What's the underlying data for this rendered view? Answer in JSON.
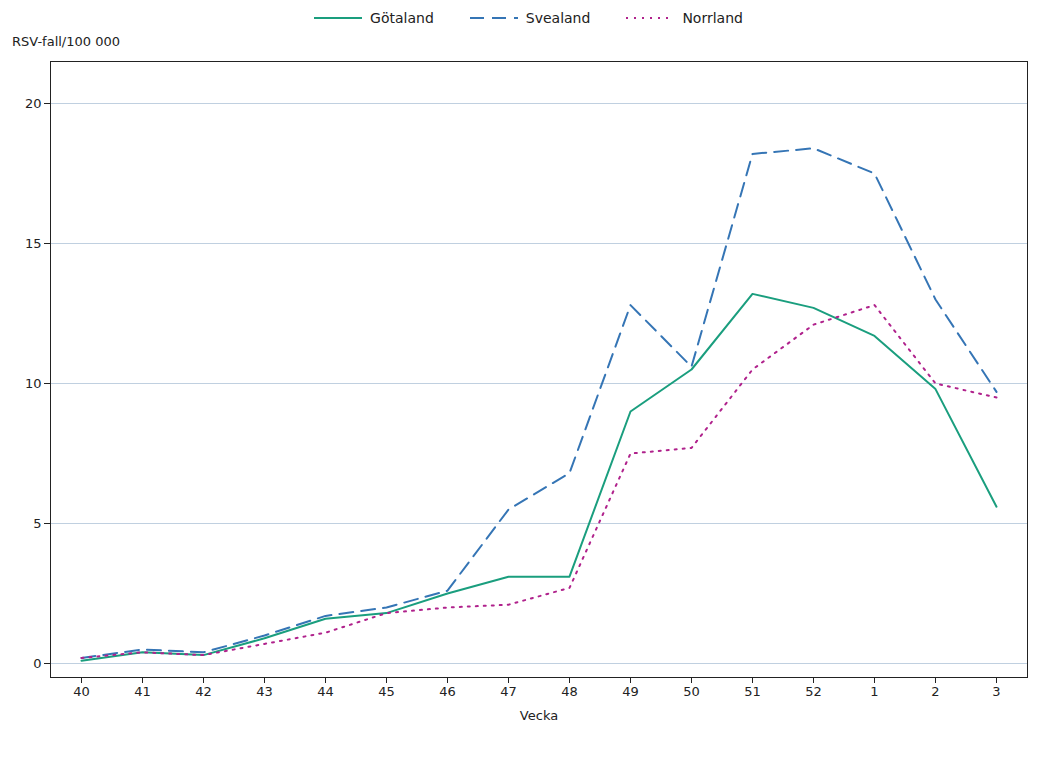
{
  "chart_data": {
    "type": "line",
    "x_label": "Vecka",
    "y_label": "RSV-fall/100 000",
    "categories": [
      "40",
      "41",
      "42",
      "43",
      "44",
      "45",
      "46",
      "47",
      "48",
      "49",
      "50",
      "51",
      "52",
      "1",
      "2",
      "3"
    ],
    "series": [
      {
        "name": "Götaland",
        "color": "#1a9e7e",
        "line_style": "solid",
        "values": [
          0.1,
          0.4,
          0.3,
          0.9,
          1.6,
          1.8,
          2.5,
          3.1,
          3.1,
          9.0,
          10.5,
          13.2,
          12.7,
          11.7,
          9.8,
          5.6
        ]
      },
      {
        "name": "Svealand",
        "color": "#3575b5",
        "line_style": "dashed",
        "values": [
          0.2,
          0.5,
          0.4,
          1.0,
          1.7,
          2.0,
          2.6,
          5.5,
          6.8,
          12.8,
          10.6,
          18.2,
          18.4,
          17.5,
          13.0,
          9.7
        ]
      },
      {
        "name": "Norrland",
        "color": "#b0228c",
        "line_style": "dotted",
        "values": [
          0.2,
          0.4,
          0.3,
          0.7,
          1.1,
          1.8,
          2.0,
          2.1,
          2.7,
          7.5,
          7.7,
          10.5,
          12.1,
          12.8,
          10.0,
          9.5
        ]
      }
    ],
    "ylim": [
      -0.5,
      21.5
    ],
    "yticks": [
      0,
      5,
      10,
      15,
      20
    ],
    "grid": true,
    "legend": "top"
  }
}
